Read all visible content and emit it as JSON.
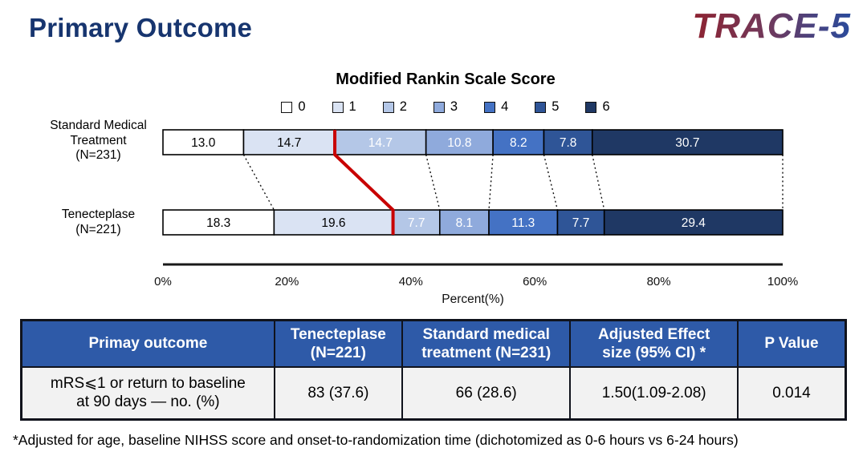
{
  "page": {
    "title": "Primary Outcome",
    "logo": "TRACE-5",
    "footnote": "*Adjusted for age, baseline NIHSS score and onset-to-randomization time (dichotomized as 0-6 hours vs 6-24 hours)"
  },
  "chart_data": {
    "type": "bar",
    "orientation": "horizontal-stacked",
    "title": "Modified Rankin Scale Score",
    "xlabel": "Percent(%)",
    "x_ticks": [
      "0%",
      "20%",
      "40%",
      "60%",
      "80%",
      "100%"
    ],
    "xlim": [
      0,
      100
    ],
    "legend": {
      "position": "top",
      "labels": [
        "0",
        "1",
        "2",
        "3",
        "4",
        "5",
        "6"
      ]
    },
    "segment_colors": [
      "#FFFFFF",
      "#DAE3F3",
      "#B4C7E7",
      "#8FAADC",
      "#4472C4",
      "#2F5597",
      "#1F3864"
    ],
    "rows": [
      {
        "label": "Standard Medical\nTreatment\n(N=231)",
        "values": [
          13.0,
          14.7,
          14.7,
          10.8,
          8.2,
          7.8,
          30.7
        ]
      },
      {
        "label": "Tenecteplase\n(N=221)",
        "values": [
          18.3,
          19.6,
          7.7,
          8.1,
          11.3,
          7.7,
          29.4
        ]
      }
    ],
    "divider": {
      "after_index": 1,
      "color": "#C80000",
      "meaning": "mRS 0-1 vs 2-6 boundary"
    }
  },
  "table": {
    "headers": [
      "Primay outcome",
      "Tenecteplase\n(N=221)",
      "Standard medical\ntreatment (N=231)",
      "Adjusted Effect\nsize (95% CI) *",
      "P Value"
    ],
    "rows": [
      [
        "mRS⩽1 or  return to baseline\nat 90 days — no. (%)",
        "83 (37.6)",
        "66 (28.6)",
        "1.50(1.09-2.08)",
        "0.014"
      ]
    ],
    "header_bg": "#2E5AA8",
    "body_bg": "#F2F2F2"
  },
  "colors": {
    "title_blue": "#17356F",
    "accent_red": "#C80000",
    "logo_gradient": [
      "#8E2331",
      "#2A4B9C"
    ]
  }
}
